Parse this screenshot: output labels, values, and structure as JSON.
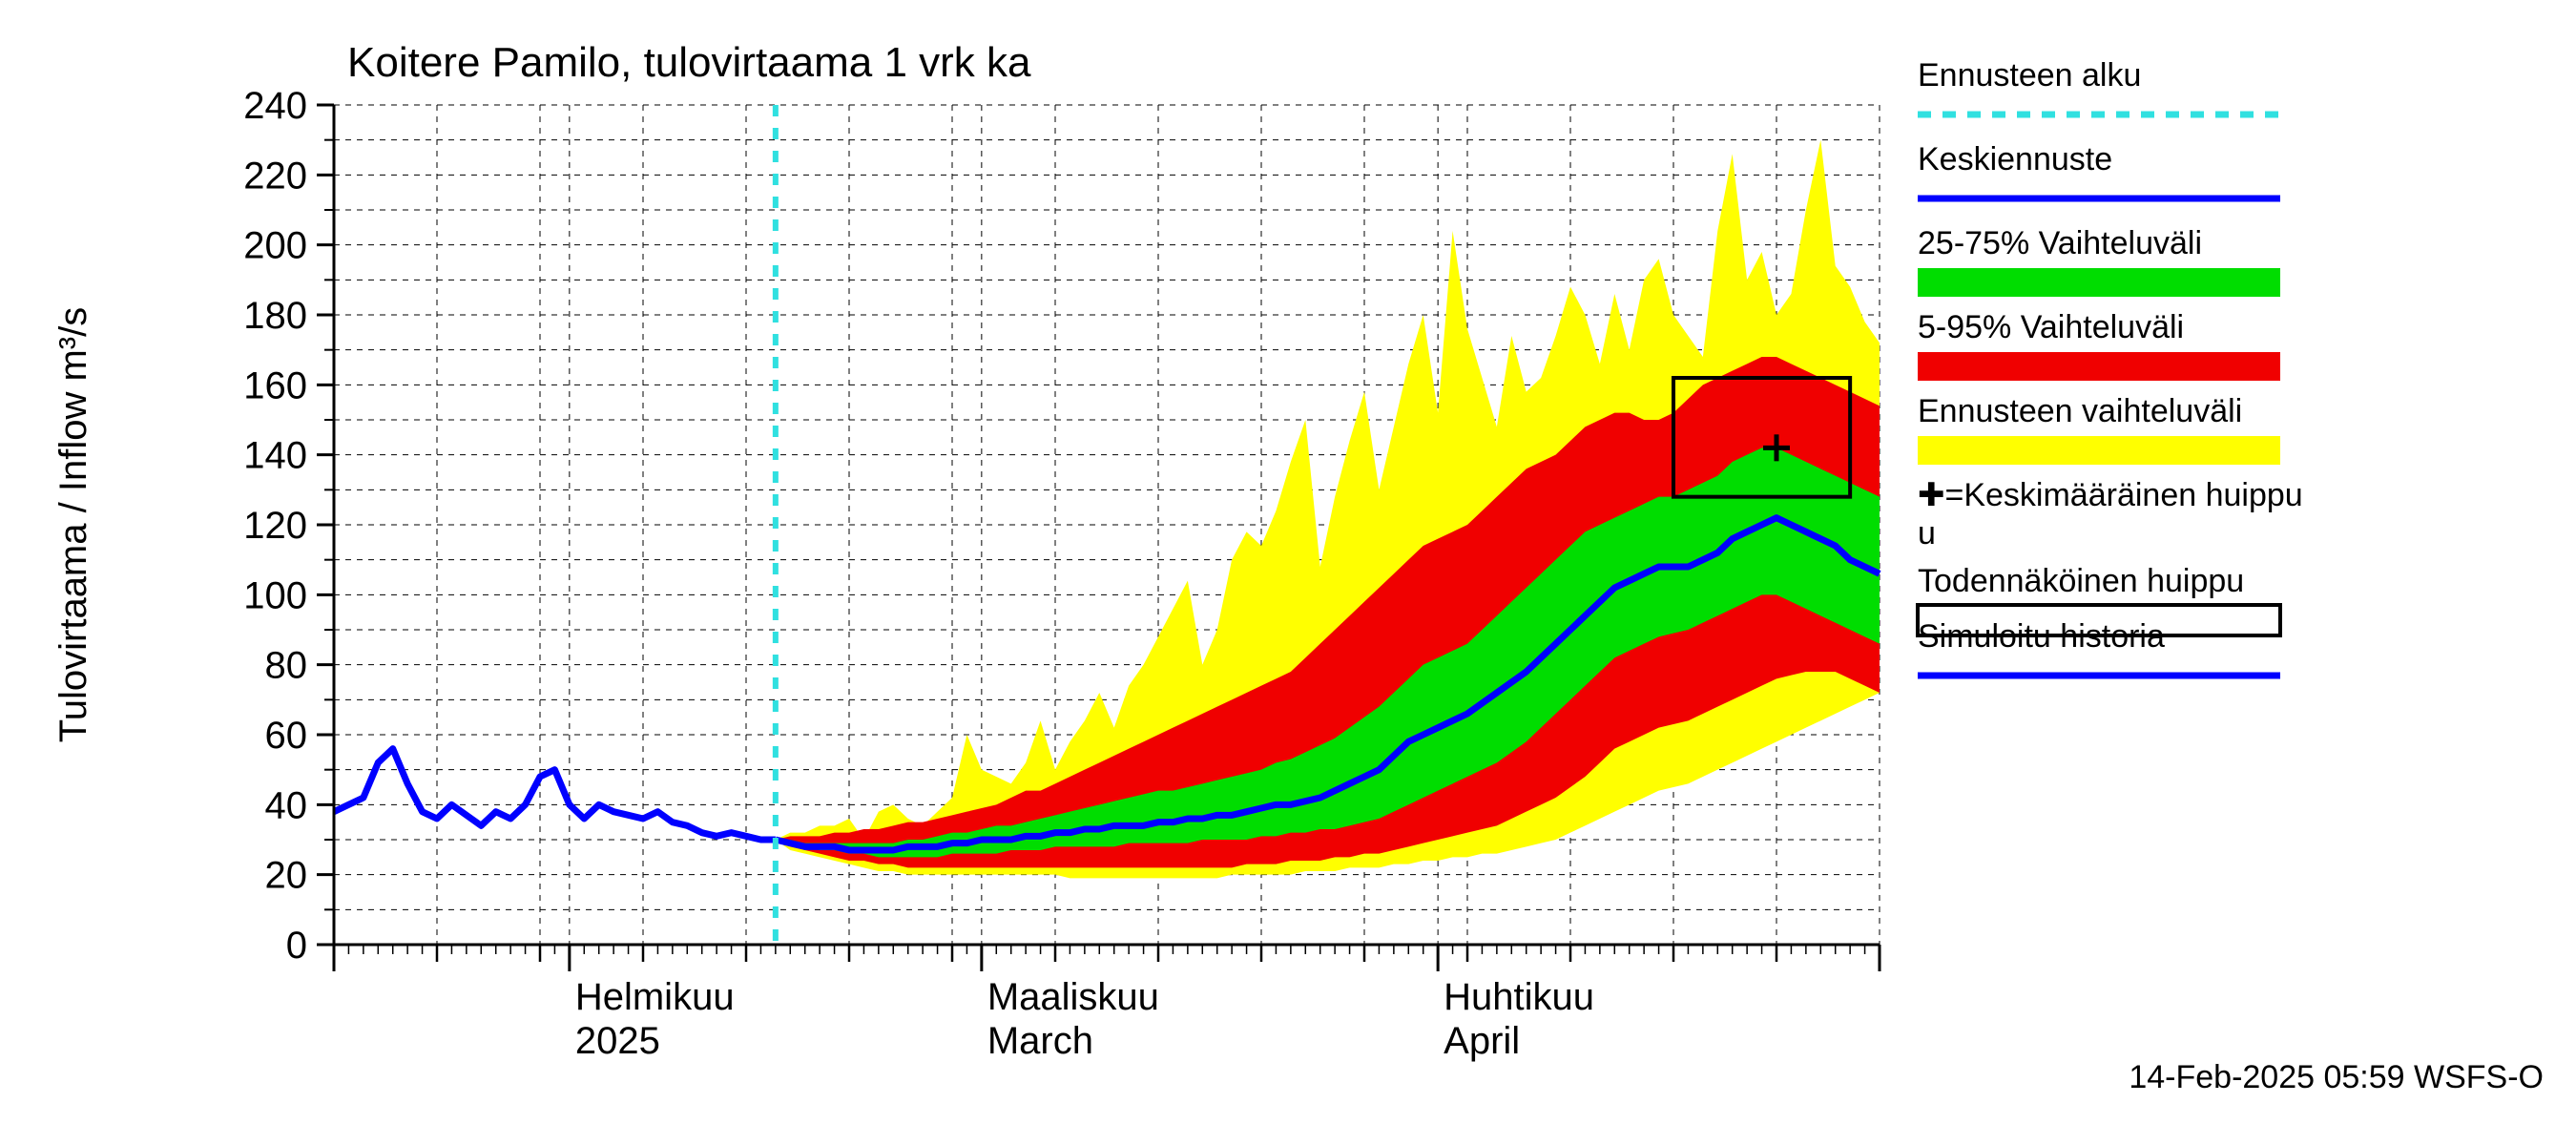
{
  "title": "Koitere Pamilo, tulovirtaama 1 vrk ka",
  "ylabel": "Tulovirtaama / Inflow    m³/s",
  "footer": "14-Feb-2025 05:59 WSFS-O",
  "yaxis": {
    "min": 0,
    "max": 240,
    "tick_step": 20,
    "minor_step": 10
  },
  "xaxis": {
    "months": [
      {
        "key": "jan",
        "start": 0,
        "l1": "",
        "l2": ""
      },
      {
        "key": "feb",
        "start": 16,
        "l1": "Helmikuu",
        "l2": "2025"
      },
      {
        "key": "mar",
        "start": 44,
        "l1": "Maaliskuu",
        "l2": "March"
      },
      {
        "key": "apr",
        "start": 75,
        "l1": "Huhtikuu",
        "l2": "April"
      },
      {
        "key": "may",
        "start": 105
      }
    ],
    "total_days": 105,
    "major_gridlines": [
      0,
      16,
      44,
      75,
      105
    ],
    "weekly_ticks_step": 7,
    "forecast_start_day": 30
  },
  "colors": {
    "bg": "#ffffff",
    "axis": "#000000",
    "grid_major": "#000000",
    "grid_minor": "#000000",
    "history": "#0000ff",
    "mean_fc": "#0000ff",
    "band_25_75": "#00dd00",
    "band_5_95": "#f00000",
    "band_full": "#ffff00",
    "fc_start_line": "#30e0e0",
    "peak_box": "#000000",
    "peak_marker": "#000000"
  },
  "line_widths": {
    "history": 7,
    "mean_fc": 7,
    "axis": 3,
    "grid": 1,
    "fc_start": 6,
    "peak_box": 4
  },
  "legend": {
    "items": [
      {
        "key": "fc_start",
        "type": "dashed",
        "label": "Ennusteen alku"
      },
      {
        "key": "mean_fc",
        "type": "line",
        "label": "Keskiennuste"
      },
      {
        "key": "b25_75",
        "type": "band",
        "label": "25-75% Vaihteluväli"
      },
      {
        "key": "b5_95",
        "type": "band",
        "label": "5-95% Vaihteluväli"
      },
      {
        "key": "bfull",
        "type": "band",
        "label": "Ennusteen vaihteluväli"
      },
      {
        "key": "peak_mark",
        "type": "plus",
        "label": "=Keskimääräinen huippu",
        "wrap2": "u"
      },
      {
        "key": "peak_box",
        "type": "box",
        "label": "Todennäköinen huippu"
      },
      {
        "key": "history",
        "type": "line",
        "label": "Simuloitu historia"
      }
    ]
  },
  "peak": {
    "box_day_lo": 91,
    "box_day_hi": 103,
    "box_y_lo": 128,
    "box_y_hi": 162,
    "mark_day": 98,
    "mark_y": 142
  },
  "series": {
    "days": [
      0,
      1,
      2,
      3,
      4,
      5,
      6,
      7,
      8,
      9,
      10,
      11,
      12,
      13,
      14,
      15,
      16,
      17,
      18,
      19,
      20,
      21,
      22,
      23,
      24,
      25,
      26,
      27,
      28,
      29,
      30,
      31,
      32,
      33,
      34,
      35,
      36,
      37,
      38,
      39,
      40,
      41,
      42,
      43,
      44,
      45,
      46,
      47,
      48,
      49,
      50,
      51,
      52,
      53,
      54,
      55,
      56,
      57,
      58,
      59,
      60,
      61,
      62,
      63,
      64,
      65,
      66,
      67,
      68,
      69,
      70,
      71,
      72,
      73,
      74,
      75,
      76,
      77,
      78,
      79,
      80,
      81,
      82,
      83,
      84,
      85,
      86,
      87,
      88,
      89,
      90,
      91,
      92,
      93,
      94,
      95,
      96,
      97,
      98,
      99,
      100,
      101,
      102,
      103,
      104,
      105
    ],
    "history": [
      38,
      40,
      42,
      52,
      56,
      46,
      38,
      36,
      40,
      37,
      34,
      38,
      36,
      40,
      48,
      50,
      40,
      36,
      40,
      38,
      37,
      36,
      38,
      35,
      34,
      32,
      31,
      32,
      31,
      30,
      30
    ],
    "mean": [
      null,
      null,
      null,
      null,
      null,
      null,
      null,
      null,
      null,
      null,
      null,
      null,
      null,
      null,
      null,
      null,
      null,
      null,
      null,
      null,
      null,
      null,
      null,
      null,
      null,
      null,
      null,
      null,
      null,
      null,
      30,
      29,
      28,
      28,
      28,
      27,
      27,
      27,
      27,
      28,
      28,
      28,
      29,
      29,
      30,
      30,
      30,
      31,
      31,
      32,
      32,
      33,
      33,
      34,
      34,
      34,
      35,
      35,
      36,
      36,
      37,
      37,
      38,
      39,
      40,
      40,
      41,
      42,
      44,
      46,
      48,
      50,
      54,
      58,
      60,
      62,
      64,
      66,
      69,
      72,
      75,
      78,
      82,
      86,
      90,
      94,
      98,
      102,
      104,
      106,
      108,
      108,
      108,
      110,
      112,
      116,
      118,
      120,
      122,
      120,
      118,
      116,
      114,
      110,
      108,
      106
    ],
    "p25": [
      null,
      null,
      null,
      null,
      null,
      null,
      null,
      null,
      null,
      null,
      null,
      null,
      null,
      null,
      null,
      null,
      null,
      null,
      null,
      null,
      null,
      null,
      null,
      null,
      null,
      null,
      null,
      null,
      null,
      null,
      30,
      29,
      28,
      27,
      27,
      26,
      26,
      25,
      25,
      25,
      25,
      25,
      26,
      26,
      26,
      26,
      27,
      27,
      27,
      28,
      28,
      28,
      28,
      28,
      29,
      29,
      29,
      29,
      29,
      30,
      30,
      30,
      30,
      31,
      31,
      32,
      32,
      33,
      33,
      34,
      35,
      36,
      38,
      40,
      42,
      44,
      46,
      48,
      50,
      52,
      55,
      58,
      62,
      66,
      70,
      74,
      78,
      82,
      84,
      86,
      88,
      89,
      90,
      92,
      94,
      96,
      98,
      100,
      100,
      98,
      96,
      94,
      92,
      90,
      88,
      86
    ],
    "p75": [
      null,
      null,
      null,
      null,
      null,
      null,
      null,
      null,
      null,
      null,
      null,
      null,
      null,
      null,
      null,
      null,
      null,
      null,
      null,
      null,
      null,
      null,
      null,
      null,
      null,
      null,
      null,
      null,
      null,
      null,
      30,
      30,
      29,
      29,
      29,
      29,
      29,
      29,
      29,
      30,
      30,
      31,
      32,
      32,
      33,
      34,
      34,
      35,
      36,
      37,
      38,
      39,
      40,
      41,
      42,
      43,
      44,
      44,
      45,
      46,
      47,
      48,
      49,
      50,
      52,
      53,
      55,
      57,
      59,
      62,
      65,
      68,
      72,
      76,
      80,
      82,
      84,
      86,
      90,
      94,
      98,
      102,
      106,
      110,
      114,
      118,
      120,
      122,
      124,
      126,
      128,
      128,
      130,
      132,
      134,
      138,
      140,
      142,
      142,
      140,
      138,
      136,
      134,
      132,
      130,
      128
    ],
    "p5": [
      null,
      null,
      null,
      null,
      null,
      null,
      null,
      null,
      null,
      null,
      null,
      null,
      null,
      null,
      null,
      null,
      null,
      null,
      null,
      null,
      null,
      null,
      null,
      null,
      null,
      null,
      null,
      null,
      null,
      null,
      30,
      28,
      27,
      26,
      25,
      24,
      24,
      23,
      23,
      22,
      22,
      22,
      22,
      22,
      22,
      22,
      22,
      22,
      22,
      22,
      22,
      22,
      22,
      22,
      22,
      22,
      22,
      22,
      22,
      22,
      22,
      22,
      23,
      23,
      23,
      24,
      24,
      24,
      25,
      25,
      26,
      26,
      27,
      28,
      29,
      30,
      31,
      32,
      33,
      34,
      36,
      38,
      40,
      42,
      45,
      48,
      52,
      56,
      58,
      60,
      62,
      63,
      64,
      66,
      68,
      70,
      72,
      74,
      76,
      77,
      78,
      78,
      78,
      76,
      74,
      72
    ],
    "p95": [
      null,
      null,
      null,
      null,
      null,
      null,
      null,
      null,
      null,
      null,
      null,
      null,
      null,
      null,
      null,
      null,
      null,
      null,
      null,
      null,
      null,
      null,
      null,
      null,
      null,
      null,
      null,
      null,
      null,
      null,
      30,
      31,
      31,
      31,
      32,
      32,
      33,
      33,
      34,
      35,
      35,
      36,
      37,
      38,
      39,
      40,
      42,
      44,
      44,
      46,
      48,
      50,
      52,
      54,
      56,
      58,
      60,
      62,
      64,
      66,
      68,
      70,
      72,
      74,
      76,
      78,
      82,
      86,
      90,
      94,
      98,
      102,
      106,
      110,
      114,
      116,
      118,
      120,
      124,
      128,
      132,
      136,
      138,
      140,
      144,
      148,
      150,
      152,
      152,
      150,
      150,
      152,
      156,
      160,
      162,
      164,
      166,
      168,
      168,
      166,
      164,
      162,
      160,
      158,
      156,
      154
    ],
    "pmin": [
      null,
      null,
      null,
      null,
      null,
      null,
      null,
      null,
      null,
      null,
      null,
      null,
      null,
      null,
      null,
      null,
      null,
      null,
      null,
      null,
      null,
      null,
      null,
      null,
      null,
      null,
      null,
      null,
      null,
      null,
      30,
      27,
      26,
      25,
      24,
      23,
      22,
      21,
      21,
      20,
      20,
      20,
      20,
      20,
      20,
      20,
      20,
      20,
      20,
      20,
      19,
      19,
      19,
      19,
      19,
      19,
      19,
      19,
      19,
      19,
      19,
      20,
      20,
      20,
      20,
      20,
      21,
      21,
      21,
      22,
      22,
      22,
      23,
      23,
      24,
      24,
      25,
      25,
      26,
      26,
      27,
      28,
      29,
      30,
      32,
      34,
      36,
      38,
      40,
      42,
      44,
      45,
      46,
      48,
      50,
      52,
      54,
      56,
      58,
      60,
      62,
      64,
      66,
      68,
      70,
      72
    ],
    "pmax": [
      null,
      null,
      null,
      null,
      null,
      null,
      null,
      null,
      null,
      null,
      null,
      null,
      null,
      null,
      null,
      null,
      null,
      null,
      null,
      null,
      null,
      null,
      null,
      null,
      null,
      null,
      null,
      null,
      null,
      null,
      30,
      32,
      32,
      34,
      34,
      36,
      30,
      38,
      40,
      36,
      34,
      38,
      42,
      60,
      50,
      48,
      46,
      52,
      64,
      50,
      58,
      64,
      72,
      62,
      74,
      80,
      88,
      96,
      104,
      80,
      90,
      110,
      118,
      114,
      124,
      138,
      150,
      108,
      128,
      144,
      158,
      130,
      148,
      166,
      180,
      152,
      204,
      176,
      162,
      148,
      174,
      158,
      162,
      174,
      188,
      180,
      166,
      186,
      170,
      190,
      196,
      180,
      174,
      168,
      204,
      226,
      190,
      198,
      180,
      186,
      210,
      230,
      194,
      188,
      178,
      172
    ]
  }
}
